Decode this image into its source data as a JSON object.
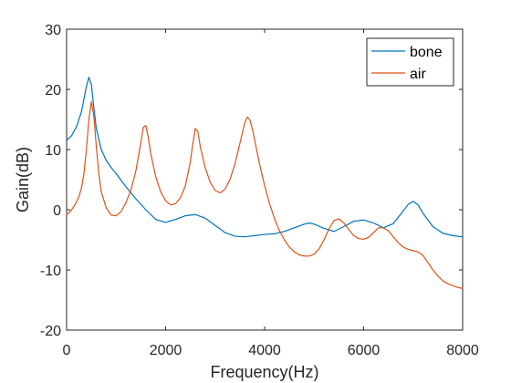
{
  "chart_data": {
    "type": "line",
    "xlabel": "Frequency(Hz)",
    "ylabel": "Gain(dB)",
    "xlim": [
      0,
      8000
    ],
    "ylim": [
      -20,
      30
    ],
    "xticks": [
      0,
      2000,
      4000,
      6000,
      8000
    ],
    "yticks": [
      -20,
      -10,
      0,
      10,
      20,
      30
    ],
    "grid": false,
    "legend_position": "top-right",
    "series": [
      {
        "name": "bone",
        "color": "#0072BD",
        "x": [
          0,
          100,
          200,
          300,
          400,
          450,
          500,
          550,
          600,
          700,
          800,
          900,
          1000,
          1200,
          1400,
          1600,
          1800,
          2000,
          2200,
          2400,
          2600,
          2800,
          3000,
          3200,
          3400,
          3600,
          3800,
          4000,
          4200,
          4400,
          4600,
          4800,
          4900,
          5000,
          5200,
          5400,
          5600,
          5800,
          6000,
          6200,
          6400,
          6600,
          6800,
          6900,
          7000,
          7100,
          7200,
          7400,
          7600,
          7800,
          8000
        ],
        "y": [
          11.5,
          12.3,
          13.8,
          16.3,
          20.5,
          22.0,
          20.8,
          17.0,
          13.5,
          10.0,
          8.2,
          7.0,
          6.0,
          3.8,
          1.8,
          0.0,
          -1.6,
          -2.1,
          -1.6,
          -1.0,
          -0.8,
          -1.4,
          -2.6,
          -3.8,
          -4.4,
          -4.5,
          -4.3,
          -4.1,
          -4.0,
          -3.6,
          -3.0,
          -2.4,
          -2.2,
          -2.4,
          -3.1,
          -3.6,
          -2.8,
          -1.9,
          -1.7,
          -2.2,
          -3.0,
          -2.3,
          -0.2,
          0.9,
          1.4,
          0.8,
          -0.6,
          -2.8,
          -3.9,
          -4.3,
          -4.5
        ]
      },
      {
        "name": "air",
        "color": "#D95319",
        "x": [
          0,
          50,
          100,
          150,
          200,
          250,
          300,
          350,
          400,
          450,
          500,
          550,
          600,
          650,
          700,
          800,
          900,
          1000,
          1100,
          1200,
          1300,
          1400,
          1500,
          1550,
          1600,
          1650,
          1700,
          1800,
          1900,
          2000,
          2100,
          2200,
          2300,
          2400,
          2500,
          2550,
          2600,
          2650,
          2700,
          2800,
          2900,
          3000,
          3100,
          3200,
          3300,
          3400,
          3500,
          3600,
          3650,
          3700,
          3750,
          3800,
          3900,
          4000,
          4100,
          4200,
          4300,
          4400,
          4500,
          4600,
          4700,
          4800,
          4900,
          5000,
          5100,
          5200,
          5300,
          5400,
          5500,
          5600,
          5700,
          5800,
          5900,
          6000,
          6100,
          6200,
          6300,
          6400,
          6500,
          6600,
          6700,
          6800,
          6900,
          7000,
          7100,
          7200,
          7300,
          7400,
          7500,
          7600,
          7700,
          7800,
          7900,
          8000
        ],
        "y": [
          -0.8,
          -0.5,
          0.0,
          0.6,
          1.3,
          2.2,
          3.6,
          6.0,
          10.0,
          15.0,
          18.0,
          15.5,
          10.5,
          6.0,
          3.0,
          0.3,
          -0.9,
          -1.0,
          -0.3,
          1.2,
          3.3,
          6.5,
          11.2,
          13.7,
          14.0,
          12.0,
          9.3,
          5.5,
          3.0,
          1.5,
          0.8,
          1.0,
          2.0,
          4.0,
          8.0,
          11.0,
          13.5,
          13.0,
          10.5,
          7.0,
          4.6,
          3.2,
          2.8,
          3.4,
          5.0,
          7.6,
          11.0,
          14.5,
          15.4,
          15.0,
          13.5,
          11.5,
          7.5,
          4.0,
          1.0,
          -1.5,
          -3.5,
          -5.0,
          -6.2,
          -7.0,
          -7.5,
          -7.7,
          -7.7,
          -7.4,
          -6.5,
          -5.0,
          -3.2,
          -1.8,
          -1.5,
          -2.2,
          -3.3,
          -4.3,
          -4.8,
          -4.9,
          -4.6,
          -3.8,
          -3.0,
          -3.0,
          -3.5,
          -4.5,
          -5.5,
          -6.2,
          -6.6,
          -6.8,
          -7.0,
          -7.6,
          -8.8,
          -10.0,
          -11.0,
          -11.8,
          -12.3,
          -12.6,
          -12.9,
          -13.1
        ]
      }
    ]
  }
}
